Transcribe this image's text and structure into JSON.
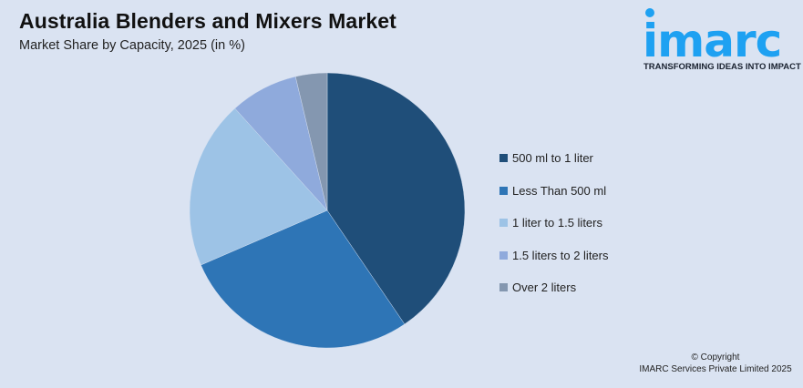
{
  "header": {
    "title": "Australia Blenders and Mixers Market",
    "subtitle": "Market Share by Capacity, 2025 (in %)"
  },
  "logo": {
    "word": "imarc",
    "tagline": "TRANSFORMING IDEAS INTO IMPACT",
    "color": "#1ea1f2"
  },
  "footer": {
    "line1": "© Copyright",
    "line2": "IMARC Services Private Limited 2025"
  },
  "chart_data": {
    "type": "pie",
    "title": "Australia Blenders and Mixers Market",
    "subtitle": "Market Share by Capacity, 2025 (in %)",
    "legend_position": "right",
    "start_angle": "12 o'clock, clockwise",
    "categories": [
      "500 ml to 1 liter",
      "Less Than 500 ml",
      "1 liter to 1.5 liters",
      "1.5 liters to 2 liters",
      "Over 2 liters"
    ],
    "values": [
      40.5,
      28.0,
      19.8,
      8.0,
      3.7
    ],
    "colors": [
      "#1f4e79",
      "#2e75b6",
      "#9dc3e6",
      "#8faadc",
      "#8497b0"
    ]
  }
}
